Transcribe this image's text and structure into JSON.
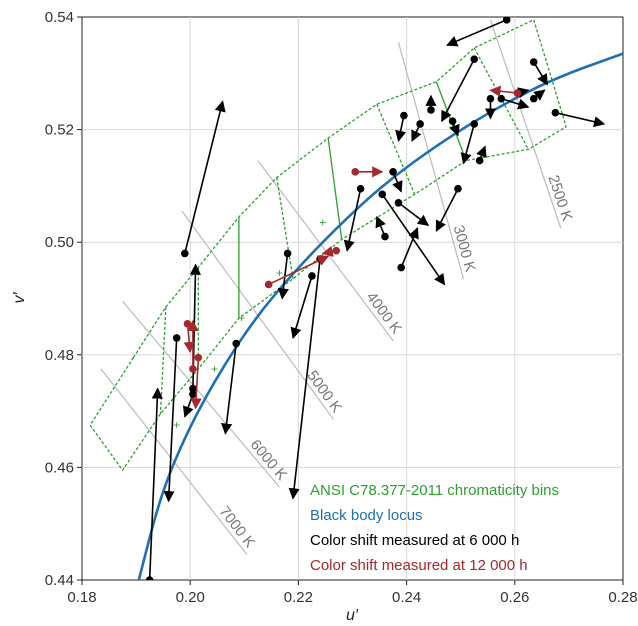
{
  "chart_data": {
    "type": "scatter",
    "xlabel": "u′",
    "ylabel": "v′",
    "xlim": [
      0.18,
      0.28
    ],
    "ylim": [
      0.44,
      0.54
    ],
    "xticks": [
      0.18,
      0.2,
      0.22,
      0.24,
      0.26,
      0.28
    ],
    "yticks": [
      0.44,
      0.46,
      0.48,
      0.5,
      0.52,
      0.54
    ],
    "xtick_labels": [
      "0.18",
      "0.20",
      "0.22",
      "0.24",
      "0.26",
      "0.28"
    ],
    "ytick_labels": [
      "0.44",
      "0.46",
      "0.48",
      "0.50",
      "0.52",
      "0.54"
    ],
    "grid": true,
    "legend_placement": "bottom-right",
    "legend": [
      {
        "label": "ANSI C78.377-2011 chromaticity bins",
        "color": "#2ca02c"
      },
      {
        "label": "Black body locus",
        "color": "#1f6fb5"
      },
      {
        "label": "Color shift measured at 6 000 h",
        "color": "#000000"
      },
      {
        "label": "Color shift measured at 12 000 h",
        "color": "#a4282d"
      }
    ],
    "black_body_locus": {
      "color": "#1f6fb5",
      "points": [
        [
          0.1905,
          0.44
        ],
        [
          0.1945,
          0.455
        ],
        [
          0.1995,
          0.4665
        ],
        [
          0.2055,
          0.477
        ],
        [
          0.212,
          0.4865
        ],
        [
          0.219,
          0.4945
        ],
        [
          0.227,
          0.5025
        ],
        [
          0.236,
          0.5105
        ],
        [
          0.246,
          0.5175
        ],
        [
          0.256,
          0.5235
        ],
        [
          0.267,
          0.529
        ],
        [
          0.28,
          0.5335
        ]
      ]
    },
    "isotherms": [
      {
        "label": "7000 K",
        "from": [
          0.1835,
          0.4775
        ],
        "to": [
          0.2105,
          0.4445
        ]
      },
      {
        "label": "6000 K",
        "from": [
          0.1875,
          0.4895
        ],
        "to": [
          0.2165,
          0.4565
        ]
      },
      {
        "label": "5000 K",
        "from": [
          0.1985,
          0.5055
        ],
        "to": [
          0.2265,
          0.4685
        ]
      },
      {
        "label": "4000 K",
        "from": [
          0.2125,
          0.5145
        ],
        "to": [
          0.2375,
          0.4825
        ]
      },
      {
        "label": "3000 K",
        "from": [
          0.2385,
          0.5355
        ],
        "to": [
          0.2505,
          0.4935
        ]
      },
      {
        "label": "2500 K",
        "from": [
          0.2555,
          0.5395
        ],
        "to": [
          0.2685,
          0.5025
        ]
      }
    ],
    "bins": {
      "color": "#2ca02c",
      "upper": [
        [
          0.1895,
          0.4795
        ],
        [
          0.1955,
          0.4885
        ],
        [
          0.2015,
          0.4955
        ],
        [
          0.209,
          0.5045
        ],
        [
          0.216,
          0.5115
        ],
        [
          0.2255,
          0.5185
        ],
        [
          0.2345,
          0.5245
        ],
        [
          0.2455,
          0.5285
        ],
        [
          0.2525,
          0.5345
        ],
        [
          0.2635,
          0.5395
        ]
      ],
      "lower": [
        [
          0.1815,
          0.4675
        ],
        [
          0.1875,
          0.4595
        ],
        [
          0.1945,
          0.4695
        ],
        [
          0.2015,
          0.4775
        ],
        [
          0.209,
          0.4865
        ],
        [
          0.219,
          0.4935
        ],
        [
          0.228,
          0.5005
        ],
        [
          0.2415,
          0.5085
        ],
        [
          0.251,
          0.5145
        ],
        [
          0.2625,
          0.5165
        ],
        [
          0.2695,
          0.5205
        ]
      ],
      "dividers": [
        [
          [
            0.1895,
            0.4795
          ],
          [
            0.1815,
            0.4675
          ]
        ],
        [
          [
            0.1955,
            0.4885
          ],
          [
            0.1945,
            0.4695
          ]
        ],
        [
          [
            0.2015,
            0.4955
          ],
          [
            0.2015,
            0.4775
          ]
        ],
        [
          [
            0.209,
            0.5045
          ],
          [
            0.209,
            0.4865
          ]
        ],
        [
          [
            0.216,
            0.5115
          ],
          [
            0.219,
            0.4935
          ]
        ],
        [
          [
            0.2255,
            0.5185
          ],
          [
            0.228,
            0.5005
          ]
        ],
        [
          [
            0.2345,
            0.5245
          ],
          [
            0.2415,
            0.5085
          ]
        ],
        [
          [
            0.2455,
            0.5285
          ],
          [
            0.251,
            0.5145
          ]
        ],
        [
          [
            0.2525,
            0.5345
          ],
          [
            0.2625,
            0.5165
          ]
        ],
        [
          [
            0.2635,
            0.5395
          ],
          [
            0.2695,
            0.5205
          ]
        ]
      ],
      "centers": [
        [
          0.1975,
          0.4675
        ],
        [
          0.2045,
          0.4775
        ],
        [
          0.2095,
          0.4865
        ],
        [
          0.2165,
          0.4945
        ],
        [
          0.2245,
          0.5035
        ],
        [
          0.2485,
          0.5205
        ]
      ]
    },
    "series": [
      {
        "name": "Color shift measured at 6 000 h",
        "color": "#000000",
        "arrows": [
          [
            0.1925,
            0.44,
            0.194,
            0.474
          ],
          [
            0.1975,
            0.483,
            0.196,
            0.454
          ],
          [
            0.2005,
            0.473,
            0.199,
            0.469
          ],
          [
            0.199,
            0.498,
            0.206,
            0.525
          ],
          [
            0.2005,
            0.474,
            0.201,
            0.496
          ],
          [
            0.2085,
            0.482,
            0.2065,
            0.466
          ],
          [
            0.218,
            0.498,
            0.217,
            0.49
          ],
          [
            0.2225,
            0.494,
            0.219,
            0.483
          ],
          [
            0.224,
            0.497,
            0.219,
            0.4545
          ],
          [
            0.2315,
            0.5095,
            0.229,
            0.4985
          ],
          [
            0.2355,
            0.5085,
            0.247,
            0.4925
          ],
          [
            0.239,
            0.4955,
            0.242,
            0.5025
          ],
          [
            0.2385,
            0.507,
            0.244,
            0.503
          ],
          [
            0.2375,
            0.5125,
            0.239,
            0.509
          ],
          [
            0.2395,
            0.5225,
            0.2385,
            0.518
          ],
          [
            0.2425,
            0.521,
            0.241,
            0.518
          ],
          [
            0.2445,
            0.5235,
            0.2445,
            0.526
          ],
          [
            0.2485,
            0.5215,
            0.2495,
            0.519
          ],
          [
            0.2525,
            0.521,
            0.2505,
            0.514
          ],
          [
            0.2525,
            0.5325,
            0.2465,
            0.5215
          ],
          [
            0.2535,
            0.5145,
            0.2545,
            0.517
          ],
          [
            0.2555,
            0.5255,
            0.2555,
            0.522
          ],
          [
            0.2585,
            0.5395,
            0.2475,
            0.535
          ],
          [
            0.2575,
            0.5255,
            0.2625,
            0.524
          ],
          [
            0.2605,
            0.5265,
            0.2625,
            0.527
          ],
          [
            0.2635,
            0.5255,
            0.2655,
            0.527
          ],
          [
            0.2635,
            0.532,
            0.266,
            0.528
          ],
          [
            0.2675,
            0.523,
            0.2765,
            0.521
          ],
          [
            0.2495,
            0.5095,
            0.2455,
            0.502
          ],
          [
            0.236,
            0.501,
            0.2345,
            0.5045
          ]
        ]
      },
      {
        "name": "Color shift measured at 12 000 h",
        "color": "#a4282d",
        "arrows": [
          [
            0.1995,
            0.4855,
            0.2,
            0.4805
          ],
          [
            0.2005,
            0.4775,
            0.2005,
            0.486
          ],
          [
            0.2015,
            0.4795,
            0.201,
            0.4705
          ],
          [
            0.2145,
            0.4925,
            0.2255,
            0.4975
          ],
          [
            0.227,
            0.4985,
            0.2245,
            0.498
          ],
          [
            0.2305,
            0.5125,
            0.2355,
            0.5125
          ],
          [
            0.2605,
            0.5265,
            0.2555,
            0.527
          ]
        ]
      }
    ]
  }
}
